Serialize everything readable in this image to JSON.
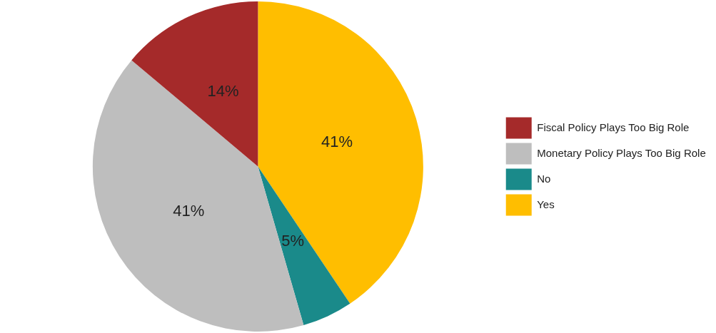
{
  "chart_data": {
    "type": "pie",
    "categories": [
      "Fiscal Policy Plays Too Big Role",
      "Monetary Policy Plays Too Big Role",
      "No",
      "Yes"
    ],
    "values": [
      14,
      41,
      5,
      41
    ],
    "colors": [
      "#a52a2a",
      "#bebebe",
      "#1a8a8a",
      "#ffbe00"
    ],
    "value_labels": [
      "14%",
      "41%",
      "5%",
      "41%"
    ],
    "legend": "right"
  }
}
